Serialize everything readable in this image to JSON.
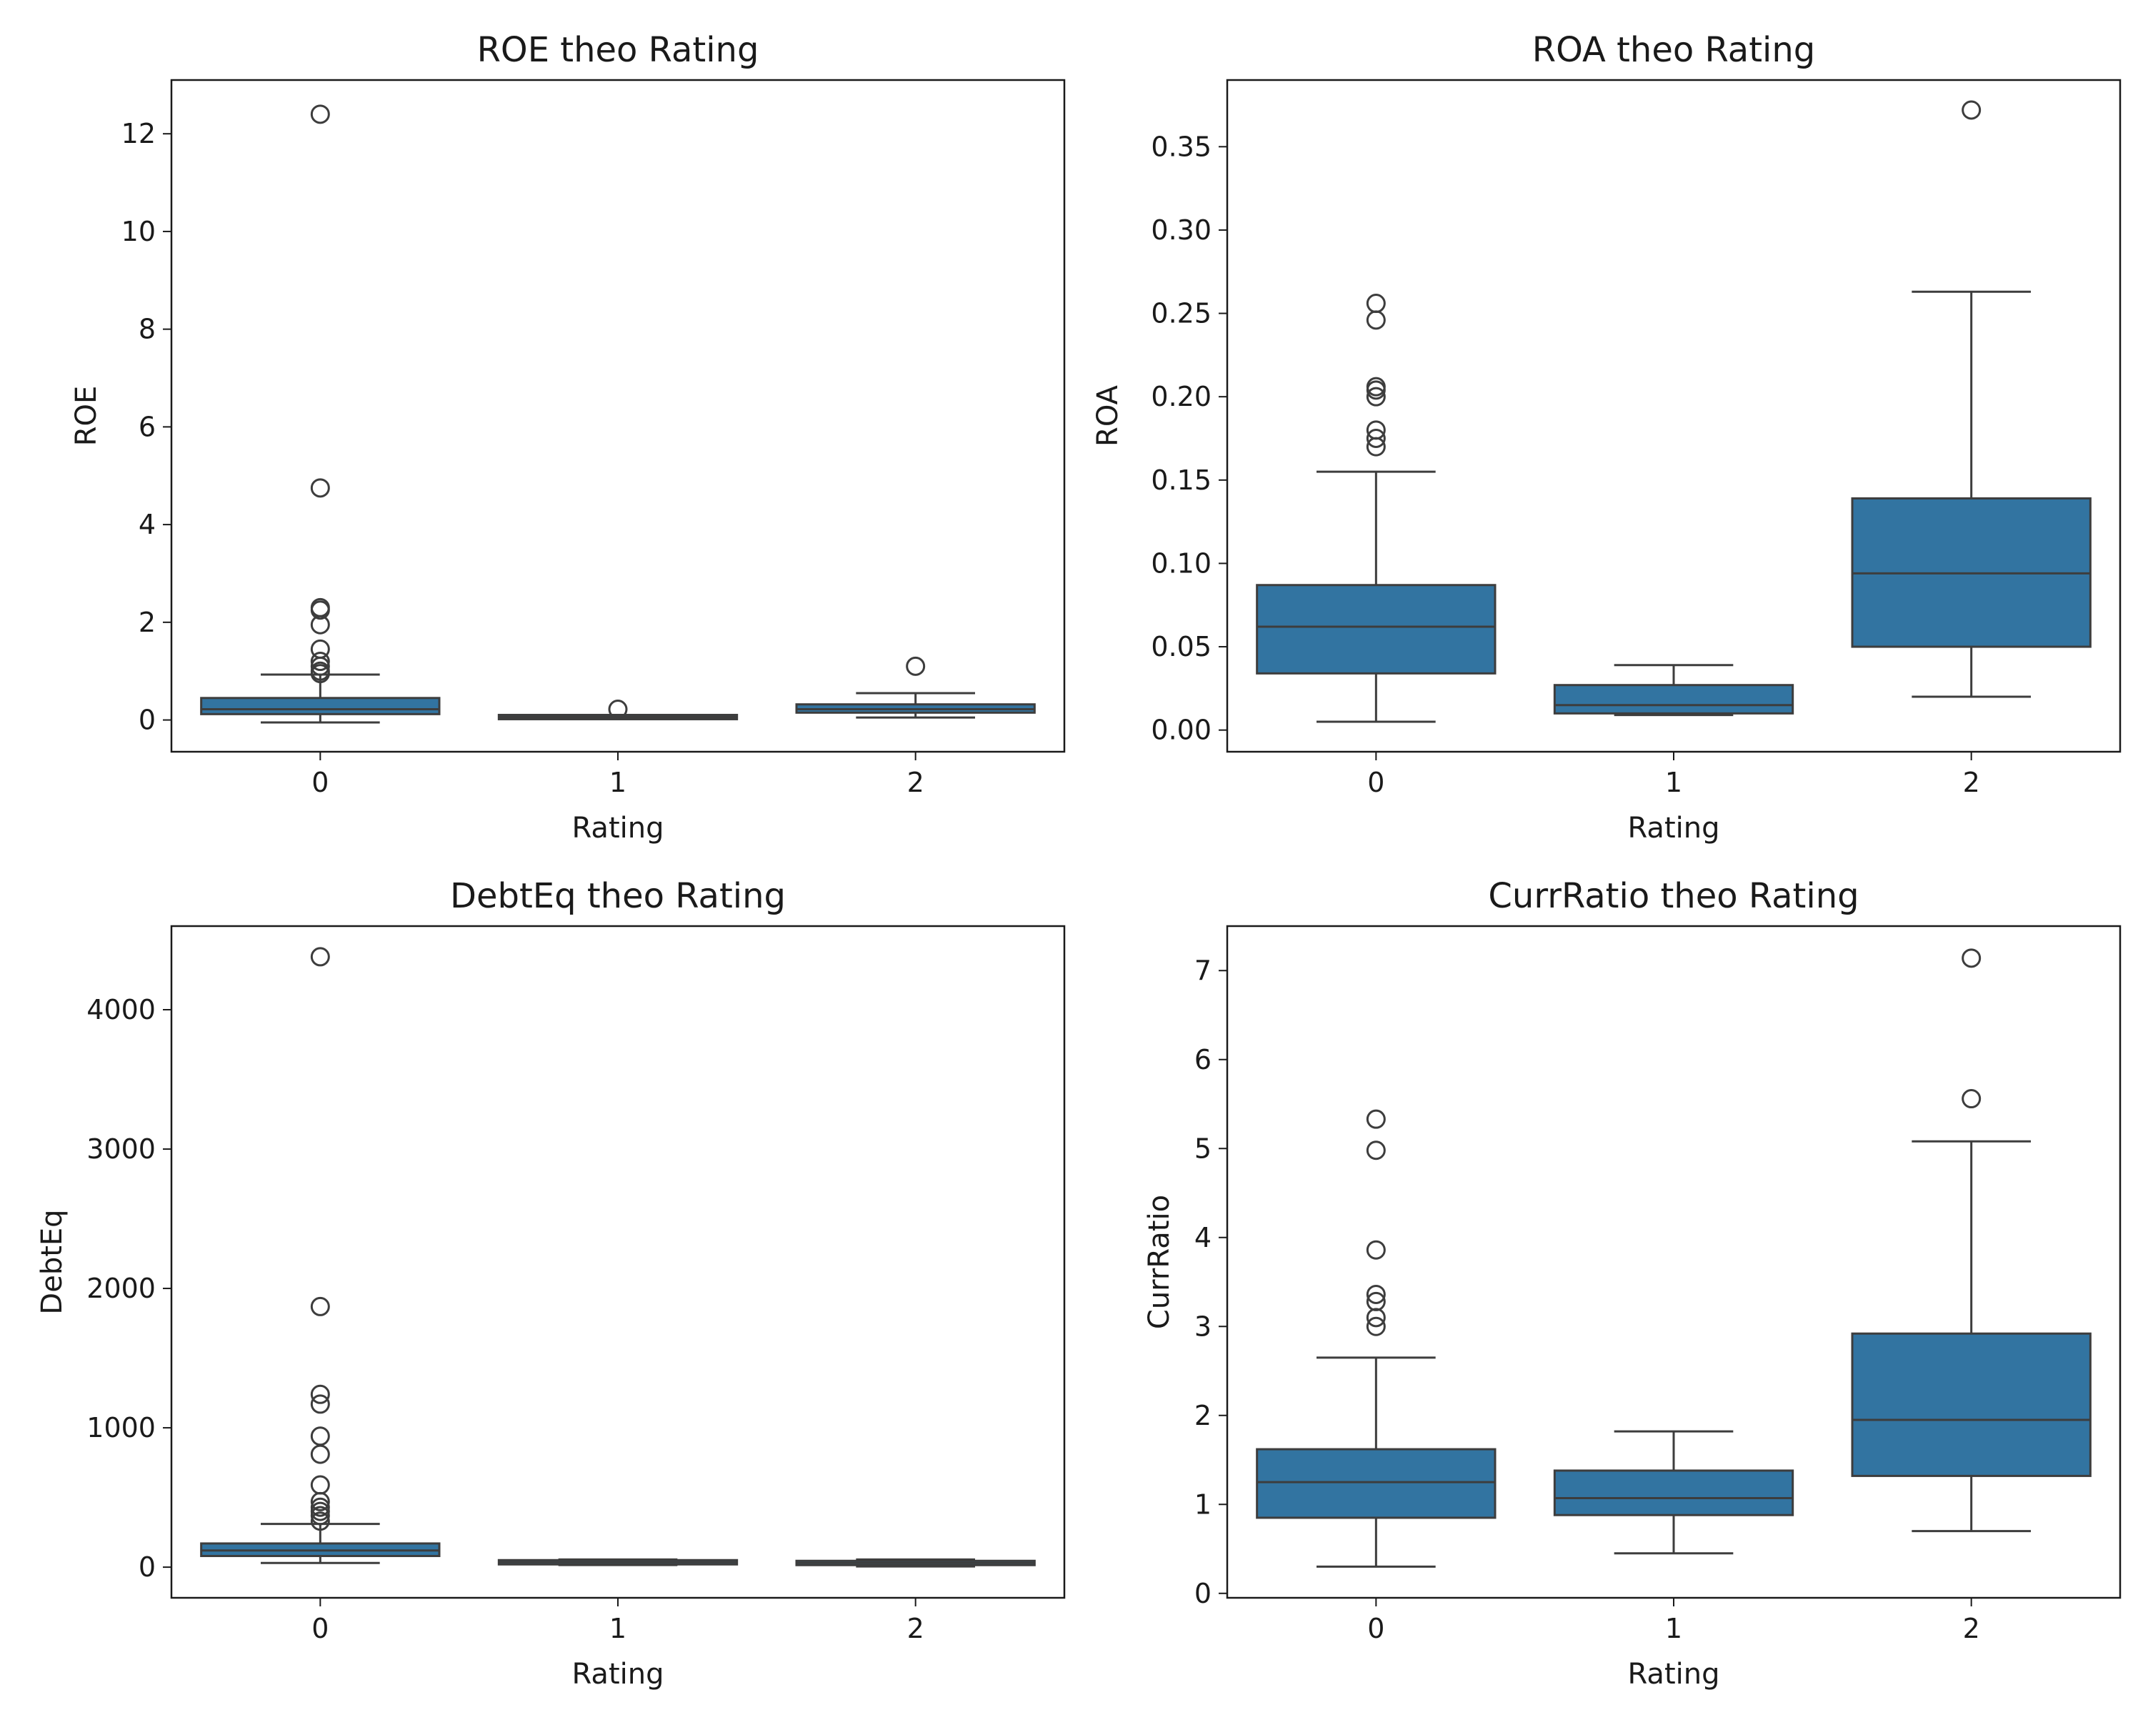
{
  "chart_data": [
    {
      "type": "box",
      "title": "ROE theo Rating",
      "xlabel": "Rating",
      "ylabel": "ROE",
      "categories": [
        "0",
        "1",
        "2"
      ],
      "ylim": [
        -0.65,
        13.1
      ],
      "yticks": [
        0,
        2,
        4,
        6,
        8,
        10,
        12
      ],
      "ytick_labels": [
        "0",
        "2",
        "4",
        "6",
        "8",
        "10",
        "12"
      ],
      "color": "#3274a1",
      "boxes": [
        {
          "category": "0",
          "whisker_low": -0.05,
          "q1": 0.12,
          "median": 0.22,
          "q3": 0.45,
          "whisker_high": 0.93,
          "outliers": [
            12.4,
            4.75,
            2.3,
            2.25,
            1.95,
            1.45,
            1.2,
            1.1,
            1.0,
            0.95
          ]
        },
        {
          "category": "1",
          "whisker_low": 0.02,
          "q1": 0.04,
          "median": 0.06,
          "q3": 0.08,
          "whisker_high": 0.1,
          "outliers": [
            0.22
          ]
        },
        {
          "category": "2",
          "whisker_low": 0.05,
          "q1": 0.15,
          "median": 0.22,
          "q3": 0.32,
          "whisker_high": 0.55,
          "outliers": [
            1.1
          ]
        }
      ]
    },
    {
      "type": "box",
      "title": "ROA theo Rating",
      "xlabel": "Rating",
      "ylabel": "ROA",
      "categories": [
        "0",
        "1",
        "2"
      ],
      "ylim": [
        -0.013,
        0.39
      ],
      "yticks": [
        0,
        0.05,
        0.1,
        0.15,
        0.2,
        0.25,
        0.3,
        0.35
      ],
      "ytick_labels": [
        "0.00",
        "0.05",
        "0.10",
        "0.15",
        "0.20",
        "0.25",
        "0.30",
        "0.35"
      ],
      "color": "#3274a1",
      "boxes": [
        {
          "category": "0",
          "whisker_low": 0.005,
          "q1": 0.034,
          "median": 0.062,
          "q3": 0.087,
          "whisker_high": 0.155,
          "outliers": [
            0.256,
            0.246,
            0.206,
            0.204,
            0.2,
            0.18,
            0.175,
            0.17
          ]
        },
        {
          "category": "1",
          "whisker_low": 0.009,
          "q1": 0.01,
          "median": 0.015,
          "q3": 0.027,
          "whisker_high": 0.039,
          "outliers": []
        },
        {
          "category": "2",
          "whisker_low": 0.02,
          "q1": 0.05,
          "median": 0.094,
          "q3": 0.139,
          "whisker_high": 0.263,
          "outliers": [
            0.372
          ]
        }
      ]
    },
    {
      "type": "box",
      "title": "DebtEq theo Rating",
      "xlabel": "Rating",
      "ylabel": "DebtEq",
      "categories": [
        "0",
        "1",
        "2"
      ],
      "ylim": [
        -220,
        4600
      ],
      "yticks": [
        0,
        1000,
        2000,
        3000,
        4000
      ],
      "ytick_labels": [
        "0",
        "1000",
        "2000",
        "3000",
        "4000"
      ],
      "color": "#3274a1",
      "boxes": [
        {
          "category": "0",
          "whisker_low": 30,
          "q1": 80,
          "median": 120,
          "q3": 170,
          "whisker_high": 310,
          "outliers": [
            4380,
            1870,
            1240,
            1170,
            940,
            810,
            590,
            470,
            430,
            400,
            370,
            330
          ]
        },
        {
          "category": "1",
          "whisker_low": 15,
          "q1": 25,
          "median": 35,
          "q3": 45,
          "whisker_high": 55,
          "outliers": []
        },
        {
          "category": "2",
          "whisker_low": 5,
          "q1": 18,
          "median": 30,
          "q3": 42,
          "whisker_high": 55,
          "outliers": []
        }
      ]
    },
    {
      "type": "box",
      "title": "CurrRatio theo Rating",
      "xlabel": "Rating",
      "ylabel": "CurrRatio",
      "categories": [
        "0",
        "1",
        "2"
      ],
      "ylim": [
        -0.05,
        7.5
      ],
      "yticks": [
        0,
        1,
        2,
        3,
        4,
        5,
        6,
        7
      ],
      "ytick_labels": [
        "0",
        "1",
        "2",
        "3",
        "4",
        "5",
        "6",
        "7"
      ],
      "color": "#3274a1",
      "boxes": [
        {
          "category": "0",
          "whisker_low": 0.3,
          "q1": 0.85,
          "median": 1.25,
          "q3": 1.62,
          "whisker_high": 2.65,
          "outliers": [
            5.33,
            4.98,
            3.86,
            3.36,
            3.28,
            3.1,
            3.0
          ]
        },
        {
          "category": "1",
          "whisker_low": 0.45,
          "q1": 0.88,
          "median": 1.07,
          "q3": 1.38,
          "whisker_high": 1.82,
          "outliers": []
        },
        {
          "category": "2",
          "whisker_low": 0.7,
          "q1": 1.32,
          "median": 1.95,
          "q3": 2.92,
          "whisker_high": 5.08,
          "outliers": [
            7.14,
            5.56
          ]
        }
      ]
    }
  ]
}
